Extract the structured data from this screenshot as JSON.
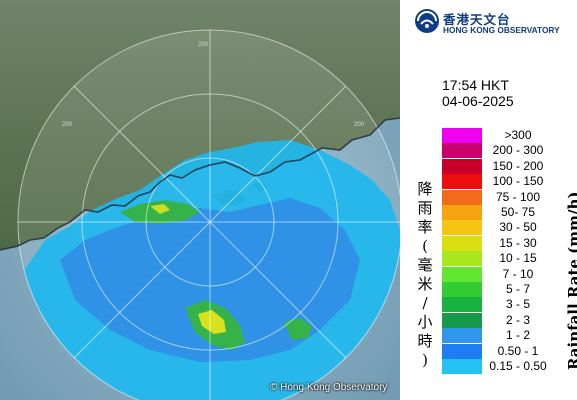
{
  "header": {
    "org_name_cn": "香港天文台",
    "org_name_en": "HONG KONG OBSERVATORY"
  },
  "timestamp": {
    "time": "17:54 HKT",
    "date": "04-06-2025"
  },
  "legend": {
    "title_en": "Rainfall Rate (mm/h)",
    "title_cn": "降雨率(毫米/小時)",
    "levels": [
      {
        "label": ">300",
        "color": "#f000f0"
      },
      {
        "label": "200 - 300",
        "color": "#c8006e"
      },
      {
        "label": "150 - 200",
        "color": "#c8002a"
      },
      {
        "label": "100 - 150",
        "color": "#ee0d0d"
      },
      {
        "label": "75 - 100",
        "color": "#f26a1b"
      },
      {
        "label": "50- 75",
        "color": "#f5a40f"
      },
      {
        "label": "30 - 50",
        "color": "#f7c511"
      },
      {
        "label": "15 - 30",
        "color": "#d9df11"
      },
      {
        "label": "10 - 15",
        "color": "#a8e61d"
      },
      {
        "label": "7 - 10",
        "color": "#5fe82f"
      },
      {
        "label": "5 - 7",
        "color": "#33cd33"
      },
      {
        "label": "3 - 5",
        "color": "#18b240"
      },
      {
        "label": "2 - 3",
        "color": "#169a4a"
      },
      {
        "label": "1 - 2",
        "color": "#3096ee"
      },
      {
        "label": "0.50 - 1",
        "color": "#1e7df0"
      },
      {
        "label": "0.15 - 0.50",
        "color": "#22c3f2"
      }
    ]
  },
  "map": {
    "copyright": "© Hong Kong Observatory",
    "range_ring_labels": [
      "200",
      "200",
      "200"
    ],
    "colors": {
      "sea": "#8fb3c7",
      "land": "#5f7552",
      "light_rain": "#1fb7ee",
      "moderate_rain": "#2f8fe6",
      "heavy_rain": "#35b34a",
      "intense_rain": "#d8e21c"
    }
  }
}
